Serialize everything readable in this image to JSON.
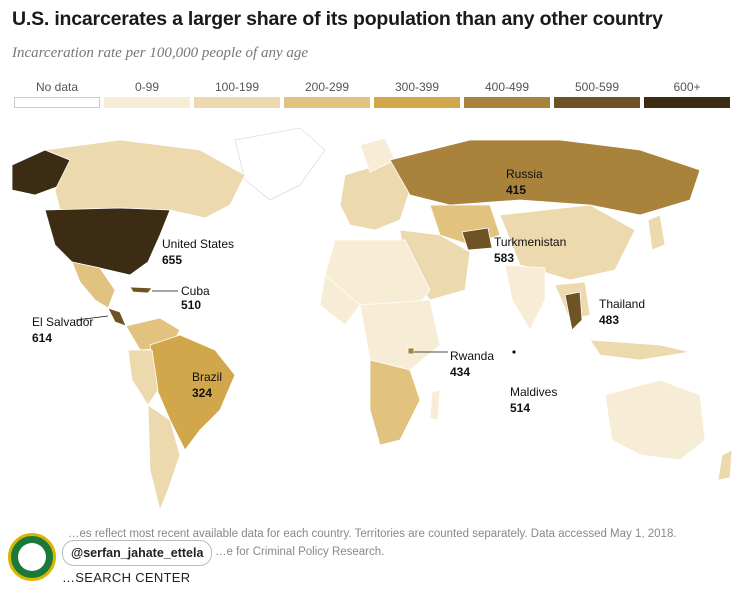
{
  "title": "U.S. incarcerates a larger share of its population than any other country",
  "subtitle": "Incarceration rate per 100,000 people of any age",
  "legend": [
    {
      "label": "No data",
      "color": "#ffffff"
    },
    {
      "label": "0-99",
      "color": "#f7edd6"
    },
    {
      "label": "100-199",
      "color": "#ecd9ad"
    },
    {
      "label": "200-299",
      "color": "#e1c27e"
    },
    {
      "label": "300-399",
      "color": "#d2a64a"
    },
    {
      "label": "400-499",
      "color": "#a9823c"
    },
    {
      "label": "500-599",
      "color": "#6e5424"
    },
    {
      "label": "600+",
      "color": "#3b2c13"
    }
  ],
  "callouts": {
    "united_states": {
      "name": "United States",
      "value": "655"
    },
    "cuba": {
      "name": "Cuba",
      "value": "510"
    },
    "el_salvador": {
      "name": "El Salvador",
      "value": "614"
    },
    "brazil": {
      "name": "Brazil",
      "value": "324"
    },
    "russia": {
      "name": "Russia",
      "value": "415"
    },
    "turkmenistan": {
      "name": "Turkmenistan",
      "value": "583"
    },
    "thailand": {
      "name": "Thailand",
      "value": "483"
    },
    "rwanda": {
      "name": "Rwanda",
      "value": "434"
    },
    "maldives": {
      "name": "Maldives",
      "value": "514"
    }
  },
  "note_line1": "…es reflect most recent available data for each country. Territories are counted separately. Data accessed May 1, 2018.",
  "note_line2": "…e for Criminal Policy Research.",
  "brand": "…SEARCH CENTER",
  "watermark": "@serfan_jahate_ettela"
}
